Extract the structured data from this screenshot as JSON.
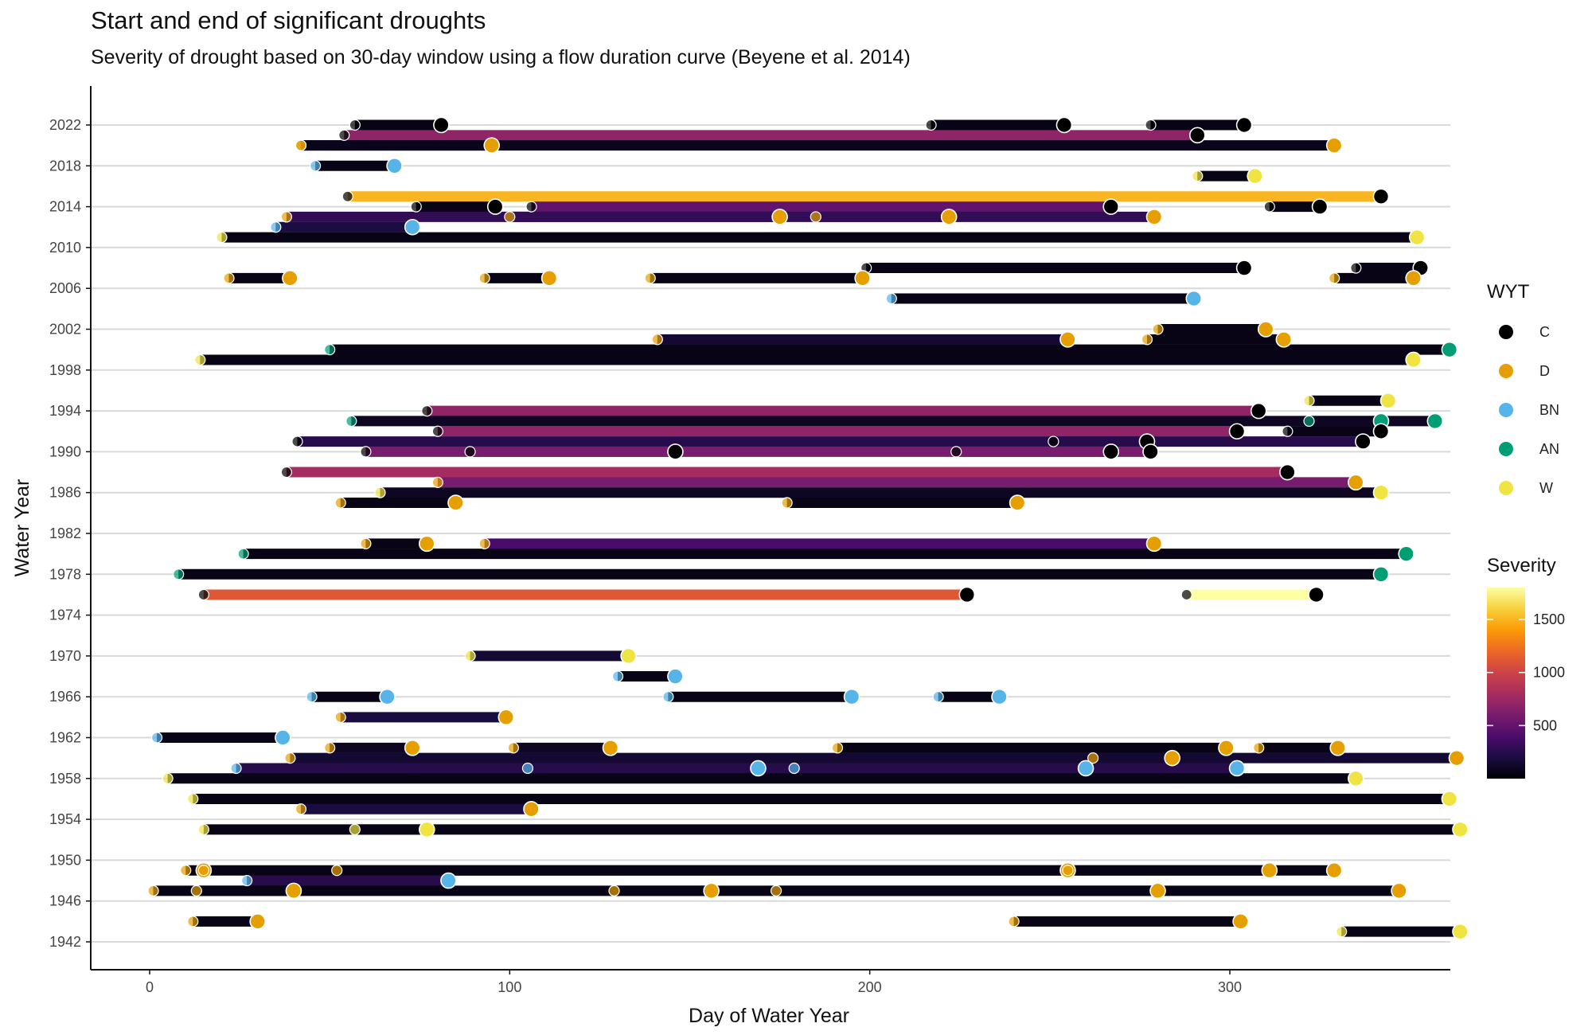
{
  "chart_data": {
    "type": "dumbbell-timeline",
    "title": "Start and end of significant droughts",
    "subtitle": "Severity of drought based on 30-day window using a flow duration curve (Beyene et al. 2014)",
    "xlabel": "Day of Water Year",
    "ylabel": "Water Year",
    "xlim": [
      -17,
      385
    ],
    "ylim": [
      1941,
      2024
    ],
    "x_ticks": [
      0,
      100,
      200,
      300
    ],
    "y_ticks": [
      1942,
      1946,
      1950,
      1954,
      1958,
      1962,
      1966,
      1970,
      1974,
      1978,
      1982,
      1986,
      1990,
      1994,
      1998,
      2002,
      2006,
      2010,
      2014,
      2018,
      2022
    ],
    "grid": "horizontal major",
    "legend_position": "right",
    "wyt_legend": {
      "title": "WYT",
      "items": [
        {
          "label": "C",
          "color": "#000000"
        },
        {
          "label": "D",
          "color": "#E69F00"
        },
        {
          "label": "BN",
          "color": "#56B4E9"
        },
        {
          "label": "AN",
          "color": "#009E73"
        },
        {
          "label": "W",
          "color": "#F0E442"
        }
      ]
    },
    "severity_legend": {
      "title": "Severity",
      "breaks": [
        500,
        1000,
        1500
      ],
      "break_labels": [
        "500",
        "1000",
        "1500"
      ],
      "range": [
        0,
        1800
      ],
      "colors": [
        "#000004",
        "#1b0c41",
        "#4a0c6b",
        "#781c6d",
        "#a52c60",
        "#cf4446",
        "#ed6925",
        "#fb9b06",
        "#f7d13d",
        "#fcffa4"
      ]
    },
    "segments": [
      {
        "year": 2022.0,
        "start": 57,
        "end": 81,
        "wyt": "C",
        "severity": 60
      },
      {
        "year": 2022.0,
        "start": 217,
        "end": 254,
        "wyt": "C",
        "severity": 60
      },
      {
        "year": 2022.0,
        "start": 278,
        "end": 304,
        "wyt": "C",
        "severity": 60
      },
      {
        "year": 2021.0,
        "start": 54,
        "end": 291,
        "wyt": "C",
        "severity": 700
      },
      {
        "year": 2020.0,
        "start": 42,
        "end": 329,
        "wyt": "D",
        "severity": 80
      },
      {
        "year": 2020.0,
        "start": 42,
        "end": 95,
        "wyt": "D",
        "severity": 80
      },
      {
        "year": 2018.0,
        "start": 46,
        "end": 68,
        "wyt": "BN",
        "severity": 60
      },
      {
        "year": 2017.0,
        "start": 291,
        "end": 307,
        "wyt": "W",
        "severity": 60
      },
      {
        "year": 2015.0,
        "start": 55,
        "end": 342,
        "wyt": "C",
        "severity": 1500
      },
      {
        "year": 2014.0,
        "start": 74,
        "end": 96,
        "wyt": "C",
        "severity": 60
      },
      {
        "year": 2014.0,
        "start": 106,
        "end": 267,
        "wyt": "C",
        "severity": 500
      },
      {
        "year": 2014.0,
        "start": 311,
        "end": 325,
        "wyt": "C",
        "severity": 60
      },
      {
        "year": 2013.0,
        "start": 38,
        "end": 279,
        "wyt": "D",
        "severity": 300
      },
      {
        "year": 2013.0,
        "start": 100,
        "end": 175,
        "wyt": "D",
        "severity": 300
      },
      {
        "year": 2013.0,
        "start": 185,
        "end": 222,
        "wyt": "D",
        "severity": 300
      },
      {
        "year": 2012.0,
        "start": 35,
        "end": 73,
        "wyt": "BN",
        "severity": 200
      },
      {
        "year": 2011.0,
        "start": 20,
        "end": 352,
        "wyt": "W",
        "severity": 60
      },
      {
        "year": 2008.0,
        "start": 199,
        "end": 304,
        "wyt": "C",
        "severity": 60
      },
      {
        "year": 2008.0,
        "start": 335,
        "end": 353,
        "wyt": "C",
        "severity": 60
      },
      {
        "year": 2007.0,
        "start": 22,
        "end": 39,
        "wyt": "D",
        "severity": 60
      },
      {
        "year": 2007.0,
        "start": 93,
        "end": 111,
        "wyt": "D",
        "severity": 60
      },
      {
        "year": 2007.0,
        "start": 139,
        "end": 198,
        "wyt": "D",
        "severity": 60
      },
      {
        "year": 2007.0,
        "start": 329,
        "end": 351,
        "wyt": "D",
        "severity": 60
      },
      {
        "year": 2005.0,
        "start": 206,
        "end": 290,
        "wyt": "BN",
        "severity": 60
      },
      {
        "year": 2002.0,
        "start": 280,
        "end": 310,
        "wyt": "D",
        "severity": 60
      },
      {
        "year": 2001.0,
        "start": 141,
        "end": 255,
        "wyt": "D",
        "severity": 150
      },
      {
        "year": 2001.0,
        "start": 277,
        "end": 315,
        "wyt": "D",
        "severity": 60
      },
      {
        "year": 2000.0,
        "start": 50,
        "end": 361,
        "wyt": "AN",
        "severity": 60
      },
      {
        "year": 1999.0,
        "start": 14,
        "end": 351,
        "wyt": "W",
        "severity": 60
      },
      {
        "year": 1995.0,
        "start": 322,
        "end": 344,
        "wyt": "W",
        "severity": 60
      },
      {
        "year": 1994.0,
        "start": 77,
        "end": 308,
        "wyt": "C",
        "severity": 700
      },
      {
        "year": 1993.0,
        "start": 56,
        "end": 357,
        "wyt": "AN",
        "severity": 100
      },
      {
        "year": 1993.0,
        "start": 322,
        "end": 342,
        "wyt": "AN",
        "severity": 100
      },
      {
        "year": 1992.0,
        "start": 80,
        "end": 302,
        "wyt": "C",
        "severity": 700
      },
      {
        "year": 1992.0,
        "start": 316,
        "end": 342,
        "wyt": "C",
        "severity": 60
      },
      {
        "year": 1991.0,
        "start": 41,
        "end": 337,
        "wyt": "C",
        "severity": 250
      },
      {
        "year": 1991.0,
        "start": 251,
        "end": 277,
        "wyt": "C",
        "severity": 250
      },
      {
        "year": 1990.0,
        "start": 60,
        "end": 278,
        "wyt": "C",
        "severity": 600
      },
      {
        "year": 1990.0,
        "start": 89,
        "end": 146,
        "wyt": "C",
        "severity": 600
      },
      {
        "year": 1990.0,
        "start": 224,
        "end": 267,
        "wyt": "C",
        "severity": 600
      },
      {
        "year": 1988.0,
        "start": 38,
        "end": 316,
        "wyt": "C",
        "severity": 800
      },
      {
        "year": 1987.0,
        "start": 80,
        "end": 335,
        "wyt": "D",
        "severity": 600
      },
      {
        "year": 1986.0,
        "start": 64,
        "end": 342,
        "wyt": "W",
        "severity": 100
      },
      {
        "year": 1985.0,
        "start": 53,
        "end": 85,
        "wyt": "D",
        "severity": 60
      },
      {
        "year": 1985.0,
        "start": 177,
        "end": 241,
        "wyt": "D",
        "severity": 60
      },
      {
        "year": 1981.0,
        "start": 60,
        "end": 77,
        "wyt": "D",
        "severity": 60
      },
      {
        "year": 1981.0,
        "start": 93,
        "end": 279,
        "wyt": "D",
        "severity": 400
      },
      {
        "year": 1980.0,
        "start": 26,
        "end": 349,
        "wyt": "AN",
        "severity": 60
      },
      {
        "year": 1978.0,
        "start": 8,
        "end": 342,
        "wyt": "AN",
        "severity": 60
      },
      {
        "year": 1976.0,
        "start": 15,
        "end": 227,
        "wyt": "C",
        "severity": 1100
      },
      {
        "year": 1976.0,
        "start": 288,
        "end": 324,
        "wyt": "C",
        "severity": 1800
      },
      {
        "year": 1970.0,
        "start": 89,
        "end": 133,
        "wyt": "W",
        "severity": 150
      },
      {
        "year": 1968.0,
        "start": 130,
        "end": 146,
        "wyt": "BN",
        "severity": 60
      },
      {
        "year": 1966.0,
        "start": 45,
        "end": 66,
        "wyt": "BN",
        "severity": 60
      },
      {
        "year": 1966.0,
        "start": 144,
        "end": 195,
        "wyt": "BN",
        "severity": 60
      },
      {
        "year": 1966.0,
        "start": 219,
        "end": 236,
        "wyt": "BN",
        "severity": 60
      },
      {
        "year": 1964.0,
        "start": 53,
        "end": 99,
        "wyt": "D",
        "severity": 200
      },
      {
        "year": 1962.0,
        "start": 2,
        "end": 37,
        "wyt": "BN",
        "severity": 60
      },
      {
        "year": 1961.0,
        "start": 50,
        "end": 73,
        "wyt": "D",
        "severity": 100
      },
      {
        "year": 1961.0,
        "start": 101,
        "end": 128,
        "wyt": "D",
        "severity": 100
      },
      {
        "year": 1961.0,
        "start": 191,
        "end": 299,
        "wyt": "D",
        "severity": 60
      },
      {
        "year": 1961.0,
        "start": 308,
        "end": 330,
        "wyt": "D",
        "severity": 60
      },
      {
        "year": 1960.0,
        "start": 39,
        "end": 363,
        "wyt": "D",
        "severity": 150
      },
      {
        "year": 1960.0,
        "start": 262,
        "end": 284,
        "wyt": "D",
        "severity": 150
      },
      {
        "year": 1959.0,
        "start": 24,
        "end": 302,
        "wyt": "BN",
        "severity": 250
      },
      {
        "year": 1959.0,
        "start": 105,
        "end": 169,
        "wyt": "BN",
        "severity": 250
      },
      {
        "year": 1959.0,
        "start": 179,
        "end": 260,
        "wyt": "BN",
        "severity": 250
      },
      {
        "year": 1958.0,
        "start": 5,
        "end": 335,
        "wyt": "W",
        "severity": 60
      },
      {
        "year": 1956.0,
        "start": 12,
        "end": 361,
        "wyt": "W",
        "severity": 60
      },
      {
        "year": 1955.0,
        "start": 42,
        "end": 106,
        "wyt": "D",
        "severity": 200
      },
      {
        "year": 1953.0,
        "start": 15,
        "end": 364,
        "wyt": "W",
        "severity": 60
      },
      {
        "year": 1953.0,
        "start": 57,
        "end": 77,
        "wyt": "W",
        "severity": 60
      },
      {
        "year": 1949.0,
        "start": 10,
        "end": 15,
        "wyt": "D",
        "severity": 60
      },
      {
        "year": 1949.0,
        "start": 15,
        "end": 329,
        "wyt": "D",
        "severity": 60
      },
      {
        "year": 1949.0,
        "start": 52,
        "end": 255,
        "wyt": "D",
        "severity": 60
      },
      {
        "year": 1949.0,
        "start": 255,
        "end": 311,
        "wyt": "D",
        "severity": 60
      },
      {
        "year": 1948.0,
        "start": 27,
        "end": 83,
        "wyt": "BN",
        "severity": 250
      },
      {
        "year": 1947.0,
        "start": 1,
        "end": 347,
        "wyt": "D",
        "severity": 60
      },
      {
        "year": 1947.0,
        "start": 13,
        "end": 40,
        "wyt": "D",
        "severity": 60
      },
      {
        "year": 1947.0,
        "start": 129,
        "end": 156,
        "wyt": "D",
        "severity": 60
      },
      {
        "year": 1947.0,
        "start": 174,
        "end": 280,
        "wyt": "D",
        "severity": 60
      },
      {
        "year": 1944.0,
        "start": 12,
        "end": 30,
        "wyt": "D",
        "severity": 60
      },
      {
        "year": 1944.0,
        "start": 240,
        "end": 303,
        "wyt": "D",
        "severity": 60
      },
      {
        "year": 1943.0,
        "start": 331,
        "end": 364,
        "wyt": "W",
        "severity": 60
      }
    ]
  }
}
